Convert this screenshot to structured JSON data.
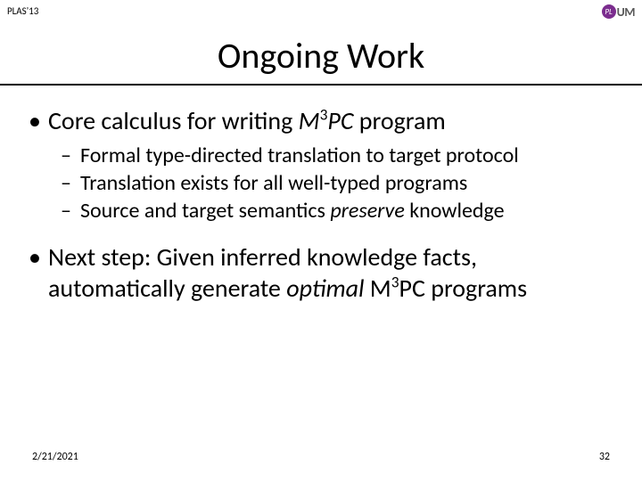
{
  "header": {
    "conference": "PLAS'13"
  },
  "logo": {
    "circle_text": "PL",
    "main_text": "UM"
  },
  "title": "Ongoing Work",
  "bullets": {
    "b1_pre": "Core calculus for writing ",
    "b1_m": "M",
    "b1_sup": "3",
    "b1_pc": "PC",
    "b1_post": " program",
    "b1a": "Formal type-directed translation to target protocol",
    "b1b": "Translation exists for all well-typed programs",
    "b1c_pre": "Source and target semantics ",
    "b1c_em": "preserve",
    "b1c_post": " knowledge",
    "b2_pre": "Next step: Given inferred knowledge facts, automatically generate ",
    "b2_em": "optimal",
    "b2_mid": " M",
    "b2_sup": "3",
    "b2_post": "PC programs"
  },
  "footer": {
    "date": "2/21/2021",
    "page": "32"
  }
}
